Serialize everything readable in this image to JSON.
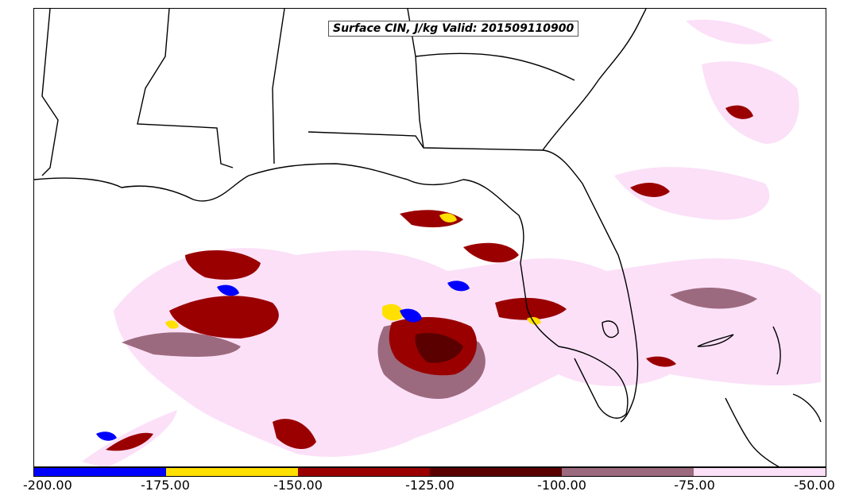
{
  "map": {
    "title": "Surface CIN, J/kg Valid: 201509110900",
    "region": "Gulf of Mexico / Southeast US",
    "colors": {
      "blue": "#0000ff",
      "yellow": "#ffe000",
      "red": "#9a0000",
      "dark_red": "#5a0000",
      "mauve": "#9c6a7e",
      "light_pink": "#fbe0f8"
    }
  },
  "colorbar": {
    "segments": [
      "#0000ff",
      "#ffe000",
      "#9a0000",
      "#5a0000",
      "#9c6a7e",
      "#fbe0f8"
    ],
    "ticks": [
      "-200.00",
      "-175.00",
      "-150.00",
      "-125.00",
      "-100.00",
      "-75.00",
      "-50.00"
    ]
  }
}
